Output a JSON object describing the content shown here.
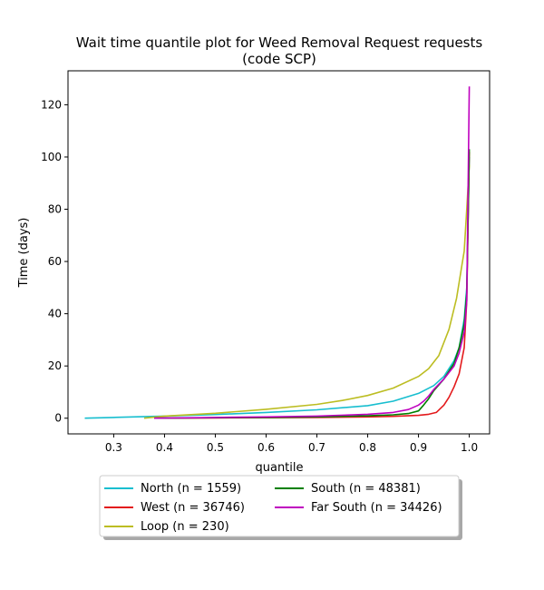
{
  "chart_data": {
    "type": "line",
    "title": "Wait time quantile plot for Weed Removal Request  requests",
    "subtitle": "(code SCP)",
    "xlabel": "quantile",
    "ylabel": "Time (days)",
    "xlim": [
      0.21,
      1.04
    ],
    "ylim": [
      -6,
      133
    ],
    "xticks": [
      0.3,
      0.4,
      0.5,
      0.6,
      0.7,
      0.8,
      0.9,
      1.0
    ],
    "xtick_labels": [
      "0.3",
      "0.4",
      "0.5",
      "0.6",
      "0.7",
      "0.8",
      "0.9",
      "1.0"
    ],
    "yticks": [
      0,
      20,
      40,
      60,
      80,
      100,
      120
    ],
    "ytick_labels": [
      "0",
      "20",
      "40",
      "60",
      "80",
      "100",
      "120"
    ],
    "grid": false,
    "legend_position": "bottom-center",
    "series": [
      {
        "name": "North (n = 1559)",
        "color": "#17becf",
        "x": [
          0.243,
          0.3,
          0.4,
          0.5,
          0.6,
          0.7,
          0.8,
          0.85,
          0.9,
          0.93,
          0.95,
          0.97,
          0.98,
          0.99,
          0.995,
          1.0
        ],
        "y": [
          0,
          0.3,
          0.8,
          1.4,
          2.2,
          3.2,
          4.8,
          6.5,
          9.5,
          12.5,
          16,
          22,
          27,
          38,
          50,
          100
        ]
      },
      {
        "name": "West (n = 36746)",
        "color": "#e31a1c",
        "x": [
          0.38,
          0.5,
          0.6,
          0.7,
          0.8,
          0.85,
          0.9,
          0.92,
          0.935,
          0.95,
          0.96,
          0.97,
          0.98,
          0.99,
          0.995,
          1.0
        ],
        "y": [
          0,
          0.1,
          0.2,
          0.3,
          0.5,
          0.7,
          1.1,
          1.5,
          2.2,
          5,
          8,
          12,
          17,
          27,
          45,
          102
        ]
      },
      {
        "name": "Loop (n = 230)",
        "color": "#bcbd22",
        "x": [
          0.36,
          0.4,
          0.5,
          0.6,
          0.7,
          0.75,
          0.8,
          0.85,
          0.9,
          0.92,
          0.94,
          0.96,
          0.975,
          0.985,
          0.99,
          0.995,
          1.0
        ],
        "y": [
          0,
          0.8,
          1.9,
          3.4,
          5.3,
          6.8,
          8.7,
          11.5,
          16,
          19,
          24,
          34,
          46,
          58,
          64,
          80,
          97
        ]
      },
      {
        "name": "South (n = 48381)",
        "color": "#008000",
        "x": [
          0.38,
          0.5,
          0.6,
          0.7,
          0.8,
          0.85,
          0.88,
          0.9,
          0.91,
          0.92,
          0.93,
          0.95,
          0.97,
          0.98,
          0.99,
          0.995,
          1.0
        ],
        "y": [
          0,
          0.2,
          0.3,
          0.5,
          0.9,
          1.3,
          1.8,
          2.8,
          5,
          7.5,
          10.5,
          15,
          21,
          27,
          36,
          48,
          103
        ]
      },
      {
        "name": "Far South (n = 34426)",
        "color": "#bf00bf",
        "x": [
          0.38,
          0.5,
          0.6,
          0.7,
          0.8,
          0.85,
          0.88,
          0.9,
          0.91,
          0.92,
          0.93,
          0.95,
          0.97,
          0.98,
          0.99,
          0.995,
          1.0
        ],
        "y": [
          0,
          0.3,
          0.5,
          0.8,
          1.5,
          2.2,
          3.3,
          5,
          6.5,
          8.5,
          11,
          15,
          20,
          25,
          33,
          45,
          127
        ]
      }
    ]
  }
}
